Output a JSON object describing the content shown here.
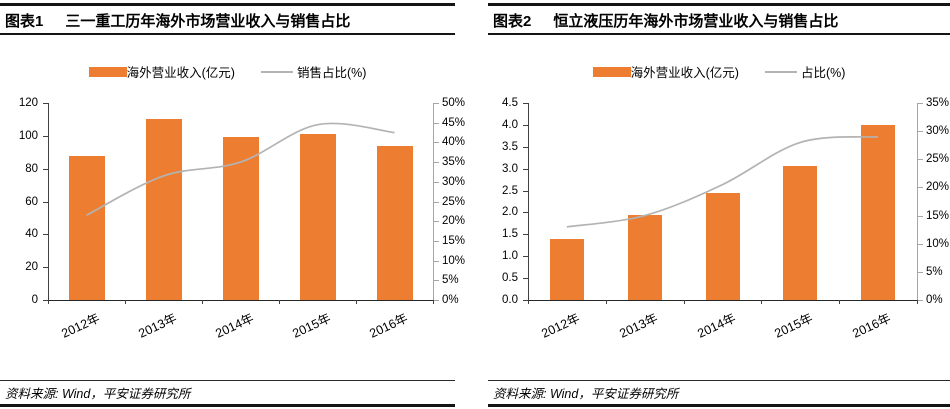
{
  "panels": [
    {
      "tag": "图表1",
      "title": "三一重工历年海外市场营业收入与销售占比",
      "source": "资料来源: Wind，平安证券研究所"
    },
    {
      "tag": "图表2",
      "title": "恒立液压历年海外市场营业收入与销售占比",
      "source": "资料来源: Wind，平安证券研究所"
    }
  ],
  "colors": {
    "bar_orange": "#ED7D31",
    "line_gray": "#B3B3B3",
    "axis_dark": "#404040",
    "axis_light": "#A6A6A6"
  },
  "chart_data": [
    {
      "type": "bar",
      "title": "三一重工历年海外市场营业收入与销售占比",
      "categories": [
        "2012年",
        "2013年",
        "2014年",
        "2015年",
        "2016年"
      ],
      "series": [
        {
          "name": "海外营业收入(亿元)",
          "type": "bar",
          "axis": "left",
          "color": "#ED7D31",
          "values": [
            88,
            110,
            99,
            101,
            94
          ]
        },
        {
          "name": "销售占比(%)",
          "type": "line",
          "axis": "right",
          "color": "#B3B3B3",
          "values": [
            21.5,
            31.5,
            35,
            44.5,
            42.5
          ]
        }
      ],
      "left_axis": {
        "min": 0,
        "max": 120,
        "step": 20,
        "decimals": 0,
        "suffix": ""
      },
      "right_axis": {
        "min": 0,
        "max": 50,
        "step": 5,
        "decimals": 0,
        "suffix": "%"
      },
      "legend_position": "top",
      "grid": false
    },
    {
      "type": "bar",
      "title": "恒立液压历年海外市场营业收入与销售占比",
      "categories": [
        "2012年",
        "2013年",
        "2014年",
        "2015年",
        "2016年"
      ],
      "series": [
        {
          "name": "海外营业收入(亿元)",
          "type": "bar",
          "axis": "left",
          "color": "#ED7D31",
          "values": [
            1.4,
            1.95,
            2.45,
            3.05,
            4.0
          ]
        },
        {
          "name": "占比(%)",
          "type": "line",
          "axis": "right",
          "color": "#B3B3B3",
          "values": [
            13,
            15,
            20.5,
            28,
            29
          ]
        }
      ],
      "left_axis": {
        "min": 0,
        "max": 4.5,
        "step": 0.5,
        "decimals": 1,
        "suffix": ""
      },
      "right_axis": {
        "min": 0,
        "max": 35,
        "step": 5,
        "decimals": 0,
        "suffix": "%"
      },
      "legend_position": "top",
      "grid": false
    }
  ]
}
